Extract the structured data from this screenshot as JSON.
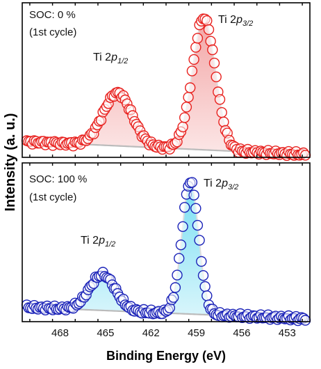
{
  "chart_data": {
    "type": "scatter",
    "xlabel": "Binding Energy (eV)",
    "ylabel": "Intensity (a. u.)",
    "x_reversed": true,
    "xlim": [
      470.5,
      451.5
    ],
    "x_ticks": [
      468,
      465,
      462,
      459,
      456,
      453
    ],
    "x_tick_labels": [
      "468",
      "465",
      "462",
      "459",
      "456",
      "453"
    ],
    "panels": [
      {
        "label_line1": "SOC: 0 %",
        "label_line2": "(1st cycle)",
        "color": "#e8211e",
        "fill_color": "#f2a0a0",
        "baseline_color": "#bbbbbb",
        "ylim": [
          -0.05,
          1.12
        ],
        "baseline": {
          "left": 0.07,
          "right": -0.03
        },
        "peaks": [
          {
            "name": "Ti 2p1/2",
            "center": 464.2,
            "height": 0.4,
            "width": 0.95
          },
          {
            "name": "Ti 2p3/2",
            "center": 458.5,
            "height": 1.0,
            "width": 0.75
          }
        ],
        "annotations": [
          {
            "text_main": "Ti 2",
            "text_italic": "p",
            "text_sub": "1/2"
          },
          {
            "text_main": "Ti 2",
            "text_italic": "p",
            "text_sub": "3/2"
          }
        ]
      },
      {
        "label_line1": "SOC: 100 %",
        "label_line2": "(1st cycle)",
        "color": "#1a22b8",
        "fill_color": "#6fdcf2",
        "baseline_color": "#bbbbbb",
        "ylim": [
          -0.08,
          1.12
        ],
        "baseline": {
          "left": 0.03,
          "right": -0.06
        },
        "peaks": [
          {
            "name": "Ti 2p1/2",
            "center": 465.2,
            "height": 0.27,
            "width": 0.85
          },
          {
            "name": "Ti 2p3/2",
            "center": 459.4,
            "height": 1.0,
            "width": 0.55
          }
        ],
        "annotations": [
          {
            "text_main": "Ti 2",
            "text_italic": "p",
            "text_sub": "1/2"
          },
          {
            "text_main": "Ti 2",
            "text_italic": "p",
            "text_sub": "3/2"
          }
        ]
      }
    ]
  }
}
